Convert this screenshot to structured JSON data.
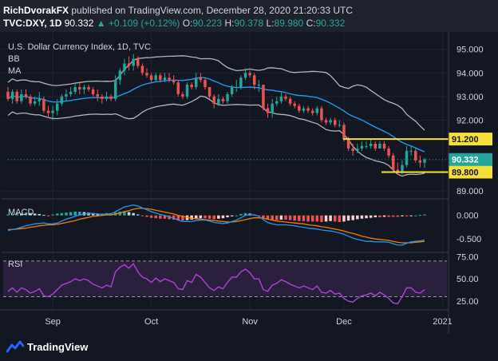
{
  "header": {
    "author": "RichDvorakFX",
    "published_text": "published on TradingView.com, December 28, 2020 21:20:33 UTC",
    "symbol": "TVC:DXY",
    "interval": "1D",
    "last": "90.332",
    "change": "+0.109 (+0.12%)",
    "o_label": "O:",
    "o_value": "90.223",
    "h_label": "H:",
    "h_value": "90.378",
    "l_label": "L:",
    "l_value": "89.980",
    "c_label": "C:",
    "c_value": "90.332"
  },
  "footer": {
    "brand": "TradingView"
  },
  "colors": {
    "background": "#131722",
    "up": "#26a69a",
    "down": "#ef5350",
    "ma": "#2196f3",
    "bands": "#b2b5be",
    "level": "#f5e03a",
    "macd_signal": "#f57c00",
    "rsi": "#b040d8",
    "rsi_zone": "#2a1f3d"
  },
  "chart_data": [
    {
      "type": "candlestick",
      "title": "U.S. Dollar Currency Index, 1D, TVC",
      "indicators": [
        "BB",
        "MA"
      ],
      "ylim": [
        88.7,
        95.6
      ],
      "y_ticks": [
        "95.000",
        "94.000",
        "93.000",
        "92.000",
        "89.800",
        "89.000"
      ],
      "x_ticks": [
        "Sep",
        "Oct",
        "Nov",
        "Dec",
        "2021"
      ],
      "price_label": "90.332",
      "levels": [
        {
          "value": 91.2,
          "label": "91.200"
        },
        {
          "value": 89.8,
          "label": "89.800"
        }
      ],
      "last_value": 90.332,
      "x": [
        "Aug 18",
        "Aug 19",
        "Aug 20",
        "Aug 21",
        "Aug 24",
        "Aug 25",
        "Aug 26",
        "Aug 27",
        "Aug 28",
        "Aug 31",
        "Sep 1",
        "Sep 2",
        "Sep 3",
        "Sep 4",
        "Sep 7",
        "Sep 8",
        "Sep 9",
        "Sep 10",
        "Sep 11",
        "Sep 14",
        "Sep 15",
        "Sep 16",
        "Sep 17",
        "Sep 18",
        "Sep 21",
        "Sep 22",
        "Sep 23",
        "Sep 24",
        "Sep 25",
        "Sep 28",
        "Sep 29",
        "Sep 30",
        "Oct 1",
        "Oct 2",
        "Oct 5",
        "Oct 6",
        "Oct 7",
        "Oct 8",
        "Oct 9",
        "Oct 12",
        "Oct 13",
        "Oct 14",
        "Oct 15",
        "Oct 16",
        "Oct 19",
        "Oct 20",
        "Oct 21",
        "Oct 22",
        "Oct 23",
        "Oct 26",
        "Oct 27",
        "Oct 28",
        "Oct 29",
        "Oct 30",
        "Nov 2",
        "Nov 3",
        "Nov 4",
        "Nov 5",
        "Nov 6",
        "Nov 9",
        "Nov 10",
        "Nov 11",
        "Nov 12",
        "Nov 13",
        "Nov 16",
        "Nov 17",
        "Nov 18",
        "Nov 19",
        "Nov 20",
        "Nov 23",
        "Nov 24",
        "Nov 25",
        "Nov 26",
        "Nov 27",
        "Nov 30",
        "Dec 1",
        "Dec 2",
        "Dec 3",
        "Dec 4",
        "Dec 7",
        "Dec 8",
        "Dec 9",
        "Dec 10",
        "Dec 11",
        "Dec 14",
        "Dec 15",
        "Dec 16",
        "Dec 17",
        "Dec 18",
        "Dec 21",
        "Dec 22",
        "Dec 23",
        "Dec 24",
        "Dec 28"
      ],
      "open": [
        93.2,
        92.9,
        93.2,
        92.8,
        93.1,
        93.0,
        92.7,
        92.8,
        92.9,
        92.4,
        92.3,
        92.4,
        92.7,
        93.0,
        93.1,
        93.2,
        93.4,
        93.3,
        93.4,
        93.3,
        93.1,
        93.0,
        92.9,
        93.0,
        92.9,
        93.7,
        94.1,
        94.4,
        94.3,
        94.6,
        94.3,
        94.0,
        93.9,
        93.7,
        93.9,
        93.7,
        93.8,
        93.7,
        93.6,
        93.1,
        93.0,
        93.5,
        93.4,
        93.8,
        93.7,
        93.4,
        93.0,
        92.7,
        92.9,
        92.8,
        93.1,
        93.4,
        93.4,
        93.8,
        94.0,
        93.9,
        93.5,
        93.5,
        92.5,
        92.3,
        92.7,
        92.8,
        93.0,
        92.9,
        92.7,
        92.6,
        92.4,
        92.5,
        92.4,
        92.3,
        92.5,
        92.0,
        91.9,
        92.0,
        91.8,
        91.8,
        91.2,
        90.8,
        90.7,
        90.8,
        90.9,
        90.9,
        91.0,
        90.8,
        91.0,
        90.8,
        90.5,
        89.9,
        89.8,
        90.1,
        90.7,
        90.7,
        90.3,
        90.2
      ],
      "high": [
        93.4,
        93.3,
        93.3,
        93.3,
        93.3,
        93.1,
        93.0,
        93.2,
        93.0,
        92.6,
        92.6,
        92.9,
        93.1,
        93.3,
        93.4,
        93.6,
        93.6,
        93.5,
        93.5,
        93.4,
        93.3,
        93.1,
        93.2,
        93.1,
        93.9,
        94.2,
        94.6,
        94.7,
        94.8,
        94.7,
        94.4,
        94.2,
        94.0,
        94.0,
        94.0,
        94.0,
        94.0,
        93.9,
        93.7,
        93.2,
        93.6,
        93.6,
        94.0,
        94.0,
        93.8,
        93.4,
        93.1,
        93.1,
        93.0,
        93.2,
        93.5,
        93.7,
        93.9,
        94.2,
        94.1,
        94.0,
        93.7,
        93.5,
        92.7,
        92.9,
        93.0,
        93.2,
        93.1,
        93.0,
        92.8,
        92.7,
        92.6,
        92.6,
        92.5,
        92.6,
        92.6,
        92.1,
        92.1,
        92.1,
        92.0,
        91.9,
        91.3,
        91.0,
        91.0,
        91.1,
        91.1,
        91.2,
        91.1,
        91.1,
        91.1,
        90.9,
        90.6,
        90.2,
        90.3,
        90.9,
        90.9,
        90.8,
        90.5,
        90.4
      ],
      "low": [
        92.8,
        92.7,
        92.7,
        92.7,
        92.9,
        92.6,
        92.6,
        92.6,
        92.3,
        92.1,
        92.0,
        92.2,
        92.6,
        92.8,
        93.0,
        93.1,
        93.1,
        93.1,
        93.2,
        93.0,
        92.8,
        92.7,
        92.8,
        92.8,
        92.8,
        93.5,
        93.9,
        94.1,
        94.1,
        94.2,
        93.9,
        93.8,
        93.6,
        93.6,
        93.6,
        93.6,
        93.6,
        93.5,
        93.0,
        92.9,
        92.9,
        93.3,
        93.3,
        93.6,
        93.3,
        92.9,
        92.5,
        92.6,
        92.7,
        92.7,
        93.0,
        93.2,
        93.3,
        93.7,
        93.8,
        93.3,
        93.2,
        92.4,
        92.1,
        92.1,
        92.6,
        92.7,
        92.8,
        92.6,
        92.5,
        92.3,
        92.3,
        92.3,
        92.2,
        92.2,
        91.9,
        91.8,
        91.8,
        91.7,
        91.7,
        91.1,
        90.7,
        90.5,
        90.6,
        90.7,
        90.8,
        90.8,
        90.7,
        90.8,
        90.7,
        90.4,
        89.8,
        89.7,
        89.7,
        90.0,
        90.5,
        90.2,
        90.0,
        89.98
      ],
      "close": [
        92.9,
        93.2,
        92.8,
        93.1,
        93.0,
        92.7,
        92.8,
        92.9,
        92.4,
        92.3,
        92.4,
        92.7,
        93.0,
        93.1,
        93.2,
        93.4,
        93.3,
        93.4,
        93.3,
        93.1,
        93.0,
        92.9,
        93.0,
        92.9,
        93.7,
        94.1,
        94.4,
        94.3,
        94.6,
        94.3,
        94.0,
        93.9,
        93.7,
        93.9,
        93.7,
        93.8,
        93.7,
        93.6,
        93.1,
        93.0,
        93.5,
        93.4,
        93.8,
        93.7,
        93.4,
        93.0,
        92.7,
        92.9,
        92.8,
        93.1,
        93.4,
        93.4,
        93.8,
        94.0,
        93.9,
        93.5,
        93.5,
        92.5,
        92.3,
        92.7,
        92.8,
        93.0,
        92.9,
        92.7,
        92.6,
        92.4,
        92.5,
        92.4,
        92.3,
        92.5,
        92.0,
        91.9,
        92.0,
        91.8,
        91.8,
        91.2,
        90.8,
        90.7,
        90.8,
        90.9,
        90.9,
        91.0,
        90.8,
        91.0,
        90.8,
        90.5,
        89.9,
        89.8,
        90.1,
        90.7,
        90.7,
        90.3,
        90.2,
        90.332
      ]
    },
    {
      "type": "bar",
      "title": "MACD",
      "ylim": [
        -0.75,
        0.3
      ],
      "y_ticks": [
        "0.000",
        "-0.500"
      ],
      "histogram": [
        0.02,
        0.03,
        0.05,
        0.04,
        0.06,
        0.05,
        0.04,
        0.03,
        0.01,
        -0.01,
        0.02,
        0.04,
        0.05,
        0.06,
        0.07,
        0.08,
        0.08,
        0.07,
        0.06,
        0.05,
        0.04,
        0.04,
        0.05,
        0.05,
        0.06,
        0.08,
        0.09,
        0.07,
        0.05,
        0.02,
        -0.01,
        -0.03,
        -0.05,
        -0.06,
        -0.07,
        -0.07,
        -0.08,
        -0.09,
        -0.1,
        -0.11,
        -0.1,
        -0.09,
        -0.07,
        -0.06,
        -0.06,
        -0.07,
        -0.08,
        -0.07,
        -0.06,
        -0.04,
        -0.02,
        0.0,
        0.03,
        0.05,
        0.04,
        0.02,
        -0.02,
        -0.06,
        -0.09,
        -0.1,
        -0.1,
        -0.09,
        -0.09,
        -0.1,
        -0.11,
        -0.12,
        -0.12,
        -0.13,
        -0.13,
        -0.13,
        -0.14,
        -0.13,
        -0.12,
        -0.13,
        -0.14,
        -0.13,
        -0.11,
        -0.1,
        -0.08,
        -0.07,
        -0.06,
        -0.05,
        -0.04,
        -0.04,
        -0.03,
        -0.03,
        -0.03,
        -0.03,
        -0.02,
        -0.02,
        -0.01,
        0.0,
        0.01,
        0.02
      ],
      "macd": [
        -0.32,
        -0.3,
        -0.28,
        -0.25,
        -0.22,
        -0.2,
        -0.18,
        -0.17,
        -0.16,
        -0.18,
        -0.18,
        -0.16,
        -0.12,
        -0.08,
        -0.05,
        -0.02,
        0.01,
        0.03,
        0.04,
        0.04,
        0.03,
        0.02,
        0.03,
        0.03,
        0.08,
        0.13,
        0.18,
        0.2,
        0.22,
        0.2,
        0.16,
        0.12,
        0.08,
        0.05,
        0.02,
        0.0,
        -0.03,
        -0.06,
        -0.1,
        -0.13,
        -0.13,
        -0.13,
        -0.11,
        -0.1,
        -0.1,
        -0.12,
        -0.15,
        -0.16,
        -0.17,
        -0.16,
        -0.13,
        -0.1,
        -0.05,
        0.0,
        0.02,
        0.01,
        -0.02,
        -0.09,
        -0.15,
        -0.18,
        -0.2,
        -0.2,
        -0.2,
        -0.21,
        -0.22,
        -0.24,
        -0.25,
        -0.27,
        -0.28,
        -0.29,
        -0.31,
        -0.32,
        -0.33,
        -0.35,
        -0.37,
        -0.4,
        -0.44,
        -0.48,
        -0.51,
        -0.53,
        -0.55,
        -0.55,
        -0.56,
        -0.56,
        -0.56,
        -0.57,
        -0.6,
        -0.63,
        -0.63,
        -0.59,
        -0.56,
        -0.55,
        -0.54,
        -0.52
      ],
      "signal": [
        -0.3,
        -0.3,
        -0.29,
        -0.28,
        -0.27,
        -0.25,
        -0.24,
        -0.22,
        -0.21,
        -0.2,
        -0.2,
        -0.19,
        -0.17,
        -0.15,
        -0.13,
        -0.11,
        -0.08,
        -0.06,
        -0.04,
        -0.02,
        -0.01,
        0.0,
        0.01,
        0.01,
        0.03,
        0.05,
        0.08,
        0.1,
        0.13,
        0.15,
        0.15,
        0.14,
        0.13,
        0.11,
        0.09,
        0.07,
        0.05,
        0.03,
        0.0,
        -0.02,
        -0.04,
        -0.06,
        -0.07,
        -0.08,
        -0.09,
        -0.1,
        -0.11,
        -0.12,
        -0.13,
        -0.14,
        -0.14,
        -0.13,
        -0.11,
        -0.09,
        -0.07,
        -0.05,
        -0.05,
        -0.06,
        -0.08,
        -0.1,
        -0.12,
        -0.13,
        -0.14,
        -0.15,
        -0.16,
        -0.17,
        -0.18,
        -0.2,
        -0.21,
        -0.22,
        -0.24,
        -0.25,
        -0.27,
        -0.29,
        -0.31,
        -0.33,
        -0.36,
        -0.38,
        -0.41,
        -0.44,
        -0.46,
        -0.48,
        -0.5,
        -0.51,
        -0.52,
        -0.53,
        -0.55,
        -0.57,
        -0.58,
        -0.58,
        -0.58,
        -0.57,
        -0.56,
        -0.55
      ]
    },
    {
      "type": "line",
      "title": "RSI",
      "ylim": [
        17,
        78
      ],
      "y_ticks": [
        "75.00",
        "50.00",
        "25.00"
      ],
      "bands": [
        70,
        30
      ],
      "values": [
        36,
        40,
        35,
        40,
        38,
        34,
        36,
        39,
        31,
        30,
        33,
        38,
        43,
        45,
        47,
        50,
        48,
        50,
        48,
        44,
        42,
        40,
        43,
        41,
        58,
        63,
        66,
        62,
        67,
        58,
        52,
        50,
        46,
        51,
        47,
        50,
        48,
        46,
        39,
        38,
        48,
        46,
        55,
        52,
        46,
        40,
        37,
        41,
        39,
        46,
        52,
        52,
        58,
        61,
        57,
        50,
        50,
        38,
        36,
        43,
        45,
        49,
        47,
        44,
        42,
        40,
        42,
        40,
        38,
        42,
        35,
        34,
        37,
        33,
        34,
        28,
        25,
        24,
        28,
        31,
        32,
        34,
        31,
        35,
        32,
        28,
        23,
        22,
        30,
        40,
        40,
        35,
        34,
        38
      ]
    }
  ]
}
